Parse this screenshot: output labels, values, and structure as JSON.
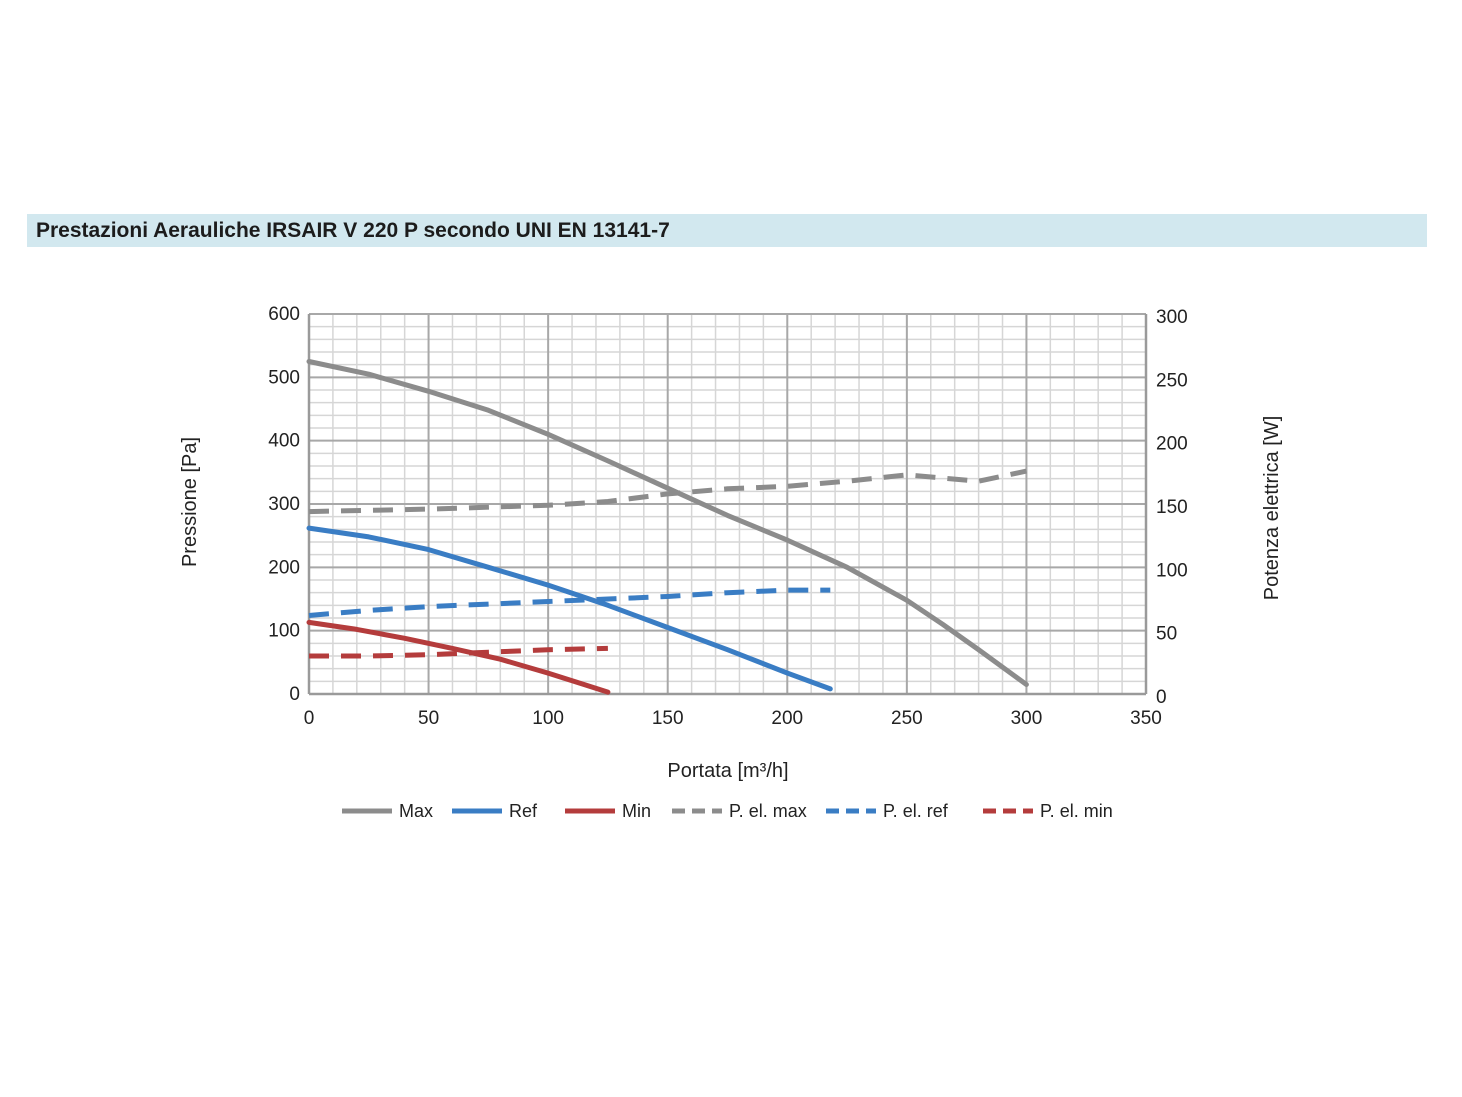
{
  "header": {
    "title": "Prestazioni Aerauliche IRSAIR V 220 P secondo UNI EN 13141-7"
  },
  "chart_data": {
    "type": "line",
    "xlabel": "Portata [m³/h]",
    "ylabel": "Pressione [Pa]",
    "y2label": "Potenza elettrica [W]",
    "xlim": [
      0,
      350
    ],
    "ylim": [
      0,
      600
    ],
    "y2lim": [
      0,
      300
    ],
    "xticks": [
      "0",
      "50",
      "100",
      "150",
      "200",
      "250",
      "300",
      "350"
    ],
    "yticks": [
      "0",
      "100",
      "200",
      "300",
      "400",
      "500",
      "600"
    ],
    "y2ticks": [
      "0",
      "50",
      "100",
      "150",
      "200",
      "250",
      "300"
    ],
    "grid": true,
    "legend_position": "bottom",
    "series": [
      {
        "name": "Max",
        "axis": "left",
        "style": "solid",
        "color": "#8c8c8c",
        "x": [
          0,
          25,
          50,
          75,
          100,
          125,
          150,
          175,
          200,
          225,
          250,
          265,
          280,
          300
        ],
        "y": [
          525,
          505,
          478,
          448,
          410,
          368,
          325,
          282,
          243,
          200,
          148,
          110,
          70,
          15
        ]
      },
      {
        "name": "Ref",
        "axis": "left",
        "style": "solid",
        "color": "#3a7dc4",
        "x": [
          0,
          25,
          50,
          75,
          100,
          125,
          150,
          175,
          200,
          218
        ],
        "y": [
          262,
          248,
          228,
          200,
          172,
          140,
          105,
          70,
          33,
          8
        ]
      },
      {
        "name": "Min",
        "axis": "left",
        "style": "solid",
        "color": "#b43c3c",
        "x": [
          0,
          20,
          40,
          60,
          80,
          100,
          115,
          125
        ],
        "y": [
          113,
          102,
          88,
          72,
          55,
          33,
          15,
          3
        ]
      },
      {
        "name": "P. el. max",
        "axis": "right",
        "style": "dashed",
        "color": "#8c8c8c",
        "x": [
          0,
          50,
          100,
          125,
          150,
          175,
          200,
          225,
          250,
          280,
          300
        ],
        "y": [
          144,
          146,
          149,
          152,
          158,
          162,
          164,
          168,
          173,
          168,
          176
        ]
      },
      {
        "name": "P. el. ref",
        "axis": "right",
        "style": "dashed",
        "color": "#3a7dc4",
        "x": [
          0,
          25,
          50,
          75,
          100,
          125,
          150,
          175,
          200,
          218
        ],
        "y": [
          62,
          66,
          69,
          71,
          73,
          75,
          77,
          80,
          82,
          82
        ]
      },
      {
        "name": "P. el. min",
        "axis": "right",
        "style": "dashed",
        "color": "#b43c3c",
        "x": [
          0,
          25,
          50,
          75,
          100,
          125
        ],
        "y": [
          30,
          30,
          31,
          33,
          35,
          36
        ]
      }
    ]
  }
}
